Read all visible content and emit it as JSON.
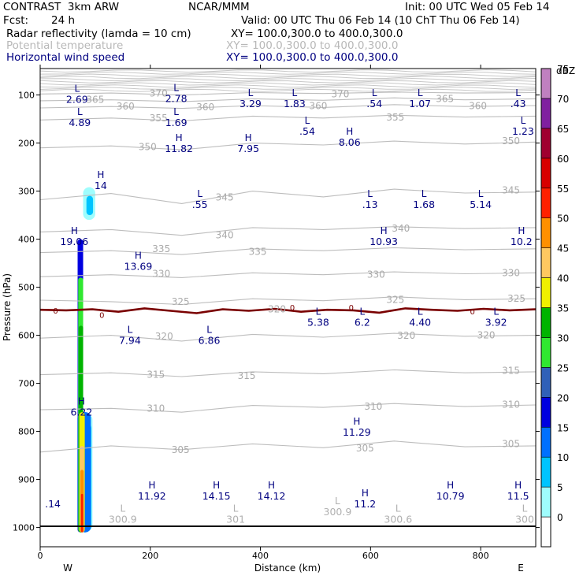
{
  "header": {
    "title": "CONTRAST  3km ARW",
    "center": "NCAR/MMM",
    "init": "Init: 00 UTC Wed 05 Feb 14",
    "fcst_label": "Fcst:",
    "fcst_value": "24 h",
    "valid": "Valid: 00 UTC Thu 06 Feb 14 (10 ChT Thu 06 Feb 14)",
    "fields": [
      {
        "name": "Radar reflectivity (lamda = 10 cm)",
        "xy": "XY= 100.0,300.0 to 400.0,300.0"
      },
      {
        "name": "Potential temperature",
        "xy": "XY= 100.0,300.0 to 400.0,300.0"
      },
      {
        "name": "Horizontal wind speed",
        "xy": "XY= 100.0,300.0 to 400.0,300.0"
      }
    ]
  },
  "chart_data": {
    "type": "cross-section",
    "xlabel": "Distance (km)",
    "ylabel": "Pressure (hPa)",
    "xlim": [
      0,
      900
    ],
    "ylim": [
      1040,
      45
    ],
    "x_ticks": [
      0,
      200,
      400,
      600,
      800
    ],
    "y_ticks": [
      100,
      200,
      300,
      400,
      500,
      600,
      700,
      800,
      900,
      1000
    ],
    "endpoints": {
      "west": "W",
      "east": "E"
    },
    "colorbar": {
      "unit": "dBZ",
      "levels": [
        0,
        5,
        10,
        15,
        20,
        25,
        30,
        35,
        40,
        45,
        50,
        55,
        60,
        65,
        70,
        75
      ],
      "colors": [
        "#ffffff",
        "#9ffdfd",
        "#00c4ff",
        "#0070ff",
        "#0000e0",
        "#3060b8",
        "#30e830",
        "#00b400",
        "#f0f000",
        "#ffc860",
        "#ff9000",
        "#ff2000",
        "#d80000",
        "#a00030",
        "#8020a0",
        "#c080c0"
      ]
    },
    "theta_isentropes": [
      {
        "value": 305,
        "p": [
          843,
          830,
          838,
          826,
          834,
          820,
          832,
          830
        ]
      },
      {
        "value": 310,
        "p": [
          755,
          752,
          760,
          746,
          750,
          742,
          748,
          745
        ]
      },
      {
        "value": 315,
        "p": [
          682,
          678,
          686,
          676,
          680,
          672,
          678,
          676
        ]
      },
      {
        "value": 320,
        "p": [
          606,
          600,
          612,
          598,
          604,
          596,
          602,
          600
        ]
      },
      {
        "value": 325,
        "p": [
          527,
          530,
          536,
          524,
          528,
          520,
          526,
          524
        ]
      },
      {
        "value": 330,
        "p": [
          478,
          474,
          480,
          470,
          474,
          468,
          472,
          470
        ]
      },
      {
        "value": 335,
        "p": [
          428,
          424,
          432,
          420,
          424,
          418,
          422,
          420
        ]
      },
      {
        "value": 340,
        "p": [
          385,
          380,
          392,
          376,
          380,
          374,
          378,
          376
        ]
      },
      {
        "value": 345,
        "p": [
          318,
          305,
          326,
          300,
          312,
          296,
          304,
          302
        ]
      },
      {
        "value": 350,
        "p": [
          210,
          206,
          214,
          200,
          204,
          196,
          202,
          198
        ]
      },
      {
        "value": 355,
        "p": [
          152,
          148,
          154,
          144,
          148,
          142,
          146,
          144
        ]
      },
      {
        "value": 360,
        "p": [
          127,
          124,
          128,
          122,
          126,
          120,
          124,
          122
        ]
      },
      {
        "value": 365,
        "p": [
          112,
          110,
          114,
          108,
          111,
          106,
          110,
          108
        ]
      },
      {
        "value": 370,
        "p": [
          98,
          96,
          100,
          95,
          97,
          94,
          96,
          95
        ]
      }
    ],
    "theta_labels": [
      {
        "text": "360",
        "x": 155,
        "p": 124
      },
      {
        "text": "360",
        "x": 300,
        "p": 125
      },
      {
        "text": "360",
        "x": 505,
        "p": 123
      },
      {
        "text": "360",
        "x": 795,
        "p": 123
      },
      {
        "text": "365",
        "x": 100,
        "p": 110
      },
      {
        "text": "365",
        "x": 735,
        "p": 108
      },
      {
        "text": "370",
        "x": 215,
        "p": 97
      },
      {
        "text": "370",
        "x": 545,
        "p": 98
      },
      {
        "text": "355",
        "x": 215,
        "p": 148
      },
      {
        "text": "355",
        "x": 645,
        "p": 147
      },
      {
        "text": "350",
        "x": 195,
        "p": 208
      },
      {
        "text": "350",
        "x": 855,
        "p": 196
      },
      {
        "text": "345",
        "x": 335,
        "p": 313
      },
      {
        "text": "345",
        "x": 855,
        "p": 298
      },
      {
        "text": "340",
        "x": 335,
        "p": 392
      },
      {
        "text": "340",
        "x": 655,
        "p": 378
      },
      {
        "text": "335",
        "x": 220,
        "p": 420
      },
      {
        "text": "335",
        "x": 395,
        "p": 426
      },
      {
        "text": "330",
        "x": 220,
        "p": 472
      },
      {
        "text": "330",
        "x": 610,
        "p": 474
      },
      {
        "text": "330",
        "x": 855,
        "p": 470
      },
      {
        "text": "325",
        "x": 255,
        "p": 530
      },
      {
        "text": "325",
        "x": 645,
        "p": 526
      },
      {
        "text": "325",
        "x": 865,
        "p": 524
      },
      {
        "text": "320",
        "x": 225,
        "p": 602
      },
      {
        "text": "320",
        "x": 665,
        "p": 601
      },
      {
        "text": "320",
        "x": 810,
        "p": 600
      },
      {
        "text": "320",
        "x": 430,
        "p": 546
      },
      {
        "text": "315",
        "x": 210,
        "p": 682
      },
      {
        "text": "315",
        "x": 375,
        "p": 684
      },
      {
        "text": "315",
        "x": 855,
        "p": 674
      },
      {
        "text": "310",
        "x": 210,
        "p": 752
      },
      {
        "text": "310",
        "x": 605,
        "p": 748
      },
      {
        "text": "310",
        "x": 855,
        "p": 744
      },
      {
        "text": "305",
        "x": 255,
        "p": 838
      },
      {
        "text": "305",
        "x": 590,
        "p": 835
      },
      {
        "text": "305",
        "x": 855,
        "p": 826
      }
    ],
    "zero_line_p": [
      547,
      548,
      546,
      551,
      544,
      549,
      554,
      546,
      549,
      545,
      551,
      547,
      548,
      553,
      544,
      547,
      549,
      545,
      548,
      546
    ],
    "zero_labels": [
      {
        "text": "0",
        "x": 28,
        "p": 548
      },
      {
        "text": "0",
        "x": 112,
        "p": 557
      },
      {
        "text": "0",
        "x": 458,
        "p": 542
      },
      {
        "text": "0",
        "x": 565,
        "p": 542
      },
      {
        "text": "0",
        "x": 785,
        "p": 550
      }
    ],
    "wind_extrema": [
      {
        "type": "L",
        "value": "2.69",
        "x": 67,
        "p": 93
      },
      {
        "type": "L",
        "value": "2.78",
        "x": 247,
        "p": 92
      },
      {
        "type": "L",
        "value": "3.29",
        "x": 382,
        "p": 102
      },
      {
        "type": "L",
        "value": "1.83",
        "x": 462,
        "p": 102
      },
      {
        "type": "L",
        "value": ".54",
        "x": 607,
        "p": 102
      },
      {
        "type": "L",
        "value": "1.07",
        "x": 690,
        "p": 102
      },
      {
        "type": "L",
        "value": ".43",
        "x": 868,
        "p": 102
      },
      {
        "type": "L",
        "value": "4.89",
        "x": 72,
        "p": 142
      },
      {
        "type": "L",
        "value": "1.69",
        "x": 247,
        "p": 142
      },
      {
        "type": "L",
        "value": ".54",
        "x": 485,
        "p": 160
      },
      {
        "type": "L",
        "value": "1.23",
        "x": 877,
        "p": 160
      },
      {
        "type": "H",
        "value": "8.06",
        "x": 562,
        "p": 183
      },
      {
        "type": "H",
        "value": "11.82",
        "x": 252,
        "p": 196
      },
      {
        "type": "H",
        "value": "7.95",
        "x": 378,
        "p": 196
      },
      {
        "type": "H",
        "value": "14",
        "x": 110,
        "p": 273
      },
      {
        "type": "L",
        "value": ".55",
        "x": 290,
        "p": 312
      },
      {
        "type": "L",
        "value": ".13",
        "x": 599,
        "p": 312
      },
      {
        "type": "L",
        "value": "1.68",
        "x": 697,
        "p": 312
      },
      {
        "type": "L",
        "value": "5.14",
        "x": 800,
        "p": 312
      },
      {
        "type": "H",
        "value": "19.06",
        "x": 62,
        "p": 389
      },
      {
        "type": "H",
        "value": "10.93",
        "x": 624,
        "p": 389
      },
      {
        "type": "H",
        "value": "10.2",
        "x": 874,
        "p": 389
      },
      {
        "type": "H",
        "value": "13.69",
        "x": 178,
        "p": 441
      },
      {
        "type": "L",
        "value": "5.38",
        "x": 505,
        "p": 557
      },
      {
        "type": "L",
        "value": "6.2",
        "x": 585,
        "p": 557
      },
      {
        "type": "L",
        "value": "4.40",
        "x": 690,
        "p": 557
      },
      {
        "type": "L",
        "value": "3.92",
        "x": 828,
        "p": 557
      },
      {
        "type": "L",
        "value": "7.94",
        "x": 163,
        "p": 595
      },
      {
        "type": "L",
        "value": "6.86",
        "x": 307,
        "p": 595
      },
      {
        "type": "H",
        "value": "6.22",
        "x": 75,
        "p": 744
      },
      {
        "type": "H",
        "value": "11.29",
        "x": 575,
        "p": 786
      },
      {
        "type": "H",
        "value": "11.92",
        "x": 203,
        "p": 919
      },
      {
        "type": "H",
        "value": "14.15",
        "x": 320,
        "p": 919
      },
      {
        "type": "H",
        "value": "14.12",
        "x": 420,
        "p": 919
      },
      {
        "type": "H",
        "value": "11.2",
        "x": 590,
        "p": 935
      },
      {
        "type": "H",
        "value": "10.79",
        "x": 745,
        "p": 919
      },
      {
        "type": "H",
        "value": "11.5",
        "x": 868,
        "p": 919
      },
      {
        "type": "",
        "value": ".14",
        "x": 23,
        "p": 935
      }
    ],
    "theta_extrema": [
      {
        "type": "L",
        "value": "300.9",
        "x": 150,
        "p": 970
      },
      {
        "type": "L",
        "value": "301",
        "x": 355,
        "p": 970
      },
      {
        "type": "L",
        "value": "300.9",
        "x": 540,
        "p": 955
      },
      {
        "type": "L",
        "value": "300.6",
        "x": 650,
        "p": 970
      },
      {
        "type": "L",
        "value": "300",
        "x": 880,
        "p": 970
      }
    ],
    "reflectivity_cells": [
      {
        "dbz": 5,
        "x0": 78,
        "x1": 100,
        "p0": 292,
        "p1": 360
      },
      {
        "dbz": 10,
        "x0": 84,
        "x1": 96,
        "p0": 310,
        "p1": 350
      },
      {
        "dbz": 5,
        "x0": 67,
        "x1": 95,
        "p0": 760,
        "p1": 1010
      },
      {
        "dbz": 10,
        "x0": 69,
        "x1": 93,
        "p0": 780,
        "p1": 1010
      },
      {
        "dbz": 15,
        "x0": 72,
        "x1": 92,
        "p0": 760,
        "p1": 1010
      },
      {
        "dbz": 20,
        "x0": 68,
        "x1": 78,
        "p0": 400,
        "p1": 1010
      },
      {
        "dbz": 30,
        "x0": 69,
        "x1": 78,
        "p0": 480,
        "p1": 1010
      },
      {
        "dbz": 35,
        "x0": 70,
        "x1": 78,
        "p0": 580,
        "p1": 1010
      },
      {
        "dbz": 40,
        "x0": 71,
        "x1": 81,
        "p0": 760,
        "p1": 1010
      },
      {
        "dbz": 45,
        "x0": 72,
        "x1": 80,
        "p0": 830,
        "p1": 1010
      },
      {
        "dbz": 50,
        "x0": 73,
        "x1": 79,
        "p0": 880,
        "p1": 1010
      },
      {
        "dbz": 55,
        "x0": 74,
        "x1": 78,
        "p0": 930,
        "p1": 1010
      }
    ]
  }
}
